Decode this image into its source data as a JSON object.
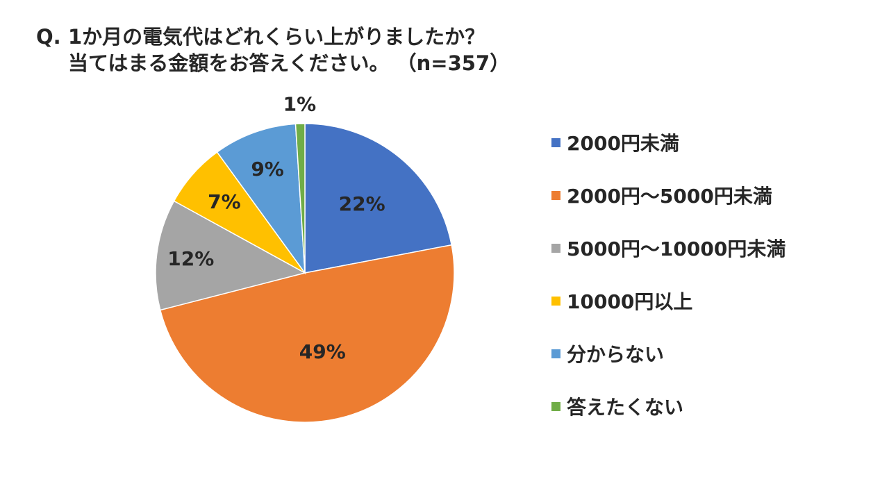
{
  "question": {
    "marker": "Q.",
    "line1": "1か月の電気代はどれくらい上がりましたか？",
    "line2": "当てはまる金額をお答えください。 （n=357）"
  },
  "chart_data": {
    "type": "pie",
    "categories": [
      "2000円未満",
      "2000円～5000円未満",
      "5000円～10000円未満",
      "10000円以上",
      "分からない",
      "答えたくない"
    ],
    "values": [
      22,
      49,
      12,
      7,
      9,
      1
    ],
    "labels": [
      "22%",
      "49%",
      "12%",
      "7%",
      "9%",
      "1%"
    ],
    "colors": [
      "#4472C4",
      "#ED7D31",
      "#A5A5A5",
      "#FFC000",
      "#5B9BD5",
      "#70AD47"
    ],
    "start_angle": "12 o'clock",
    "direction": "clockwise",
    "legend_position": "right"
  }
}
